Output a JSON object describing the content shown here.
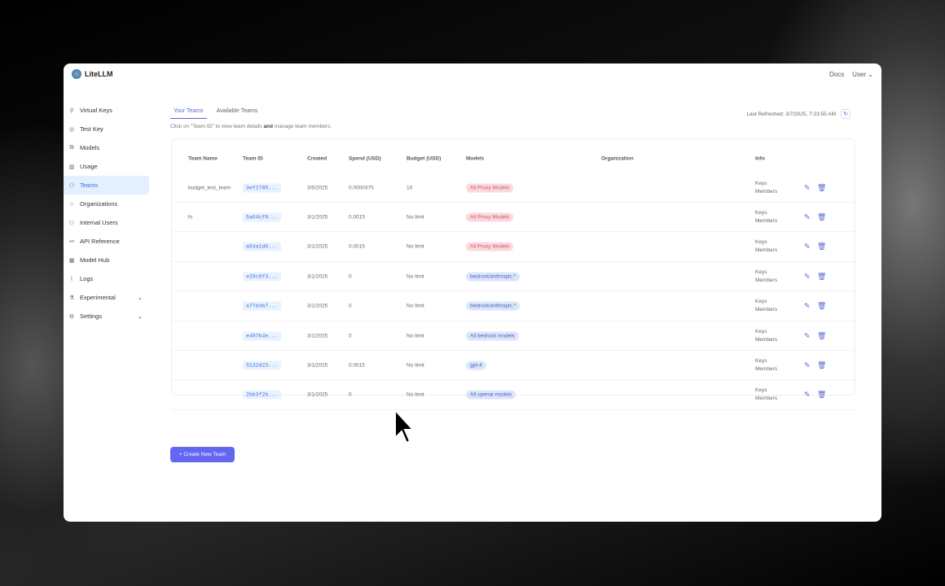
{
  "app": {
    "name": "LiteLLM",
    "docs": "Docs",
    "user": "User"
  },
  "sidebar": [
    {
      "label": "Virtual Keys",
      "icon": "key-icon",
      "g": "⚲"
    },
    {
      "label": "Test Key",
      "icon": "play-circle-icon",
      "g": "◎"
    },
    {
      "label": "Models",
      "icon": "models-icon",
      "g": "⧉"
    },
    {
      "label": "Usage",
      "icon": "bar-chart-icon",
      "g": "▥"
    },
    {
      "label": "Teams",
      "icon": "team-icon",
      "g": "⚇",
      "active": true
    },
    {
      "label": "Organizations",
      "icon": "bank-icon",
      "g": "⌂"
    },
    {
      "label": "Internal Users",
      "icon": "user-icon",
      "g": "⚇"
    },
    {
      "label": "API Reference",
      "icon": "api-icon",
      "g": "⚯"
    },
    {
      "label": "Model Hub",
      "icon": "grid-icon",
      "g": "▦"
    },
    {
      "label": "Logs",
      "icon": "line-chart-icon",
      "g": "⌇"
    },
    {
      "label": "Experimental",
      "icon": "flask-icon",
      "g": "⚗",
      "chevron": true
    },
    {
      "label": "Settings",
      "icon": "gear-icon",
      "g": "⚙",
      "chevron": true
    }
  ],
  "tabs": [
    "Your Teams",
    "Available Teams"
  ],
  "hint_pre": "Click on \"Team ID\" to view team details ",
  "hint_bold": "and",
  "hint_post": " manage team members.",
  "refresh": "Last Refreshed: 3/7/2025, 7:23:55 AM",
  "columns": [
    "Team Name",
    "Team ID",
    "Created",
    "Spend (USD)",
    "Budget (USD)",
    "Models",
    "Organization",
    "Info"
  ],
  "rows": [
    {
      "name": "budget_test_team",
      "id": "3ef2785...",
      "created": "3/5/2025",
      "spend": "0.0000375",
      "budget": "10",
      "model": "All Proxy Models",
      "color": "red"
    },
    {
      "name": "hi",
      "id": "5a64cf0...",
      "created": "3/1/2025",
      "spend": "0.0015",
      "budget": "No limit",
      "model": "All Proxy Models",
      "color": "red"
    },
    {
      "name": "",
      "id": "a64a1d6...",
      "created": "3/1/2025",
      "spend": "0.0015",
      "budget": "No limit",
      "model": "All Proxy Models",
      "color": "red"
    },
    {
      "name": "",
      "id": "e29c6f3...",
      "created": "3/1/2025",
      "spend": "0",
      "budget": "No limit",
      "model": "bedrock/anthropic.*",
      "color": "blue"
    },
    {
      "name": "",
      "id": "a77d4b7...",
      "created": "3/1/2025",
      "spend": "0",
      "budget": "No limit",
      "model": "bedrock/anthropic.*",
      "color": "blue"
    },
    {
      "name": "",
      "id": "e497b4e...",
      "created": "3/1/2025",
      "spend": "0",
      "budget": "No limit",
      "model": "All bedrock models",
      "color": "blue"
    },
    {
      "name": "",
      "id": "5132d23...",
      "created": "3/1/2025",
      "spend": "0.0015",
      "budget": "No limit",
      "model": "gpt-4",
      "color": "blue"
    },
    {
      "name": "",
      "id": "2bb3f2b...",
      "created": "3/1/2025",
      "spend": "0",
      "budget": "No limit",
      "model": "All openai models",
      "color": "blue"
    }
  ],
  "info": {
    "keys": "Keys",
    "members": "Members"
  },
  "create_button": "+ Create New Team"
}
